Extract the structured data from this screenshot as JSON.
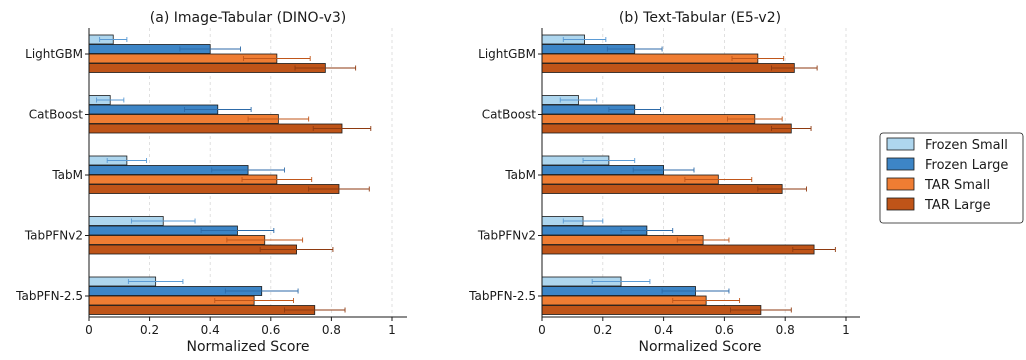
{
  "chart_data": [
    {
      "type": "bar",
      "orientation": "horizontal",
      "title": "(a) Image-Tabular (DINO-v3)",
      "xlabel": "Normalized Score",
      "xlim": [
        0,
        1.05
      ],
      "xticks": [
        "0",
        "0.2",
        "0.4",
        "0.6",
        "0.8",
        "1"
      ],
      "grid": "vertical dashed",
      "categories": [
        "LightGBM",
        "CatBoost",
        "TabM",
        "TabPFNv2",
        "TabPFN-2.5"
      ],
      "series": [
        {
          "name": "Frozen Small",
          "values": [
            0.08,
            0.07,
            0.125,
            0.245,
            0.22
          ],
          "errors": [
            0.045,
            0.045,
            0.065,
            0.105,
            0.09
          ]
        },
        {
          "name": "Frozen Large",
          "values": [
            0.4,
            0.425,
            0.525,
            0.49,
            0.57
          ],
          "errors": [
            0.1,
            0.11,
            0.12,
            0.12,
            0.12
          ]
        },
        {
          "name": "TAR Small",
          "values": [
            0.62,
            0.625,
            0.62,
            0.58,
            0.545
          ],
          "errors": [
            0.11,
            0.1,
            0.115,
            0.125,
            0.13
          ]
        },
        {
          "name": "TAR Large",
          "values": [
            0.78,
            0.835,
            0.825,
            0.685,
            0.745
          ],
          "errors": [
            0.1,
            0.095,
            0.1,
            0.12,
            0.1
          ]
        }
      ]
    },
    {
      "type": "bar",
      "orientation": "horizontal",
      "title": "(b) Text-Tabular (E5-v2)",
      "xlabel": "Normalized Score",
      "xlim": [
        0,
        1.05
      ],
      "xticks": [
        "0",
        "0.2",
        "0.4",
        "0.6",
        "0.8",
        "1"
      ],
      "grid": "vertical dashed",
      "categories": [
        "LightGBM",
        "CatBoost",
        "TabM",
        "TabPFNv2",
        "TabPFN-2.5"
      ],
      "series": [
        {
          "name": "Frozen Small",
          "values": [
            0.14,
            0.12,
            0.22,
            0.135,
            0.26
          ],
          "errors": [
            0.07,
            0.06,
            0.085,
            0.065,
            0.095
          ]
        },
        {
          "name": "Frozen Large",
          "values": [
            0.305,
            0.305,
            0.4,
            0.345,
            0.505
          ],
          "errors": [
            0.09,
            0.085,
            0.1,
            0.085,
            0.11
          ]
        },
        {
          "name": "TAR Small",
          "values": [
            0.71,
            0.7,
            0.58,
            0.53,
            0.54
          ],
          "errors": [
            0.085,
            0.09,
            0.11,
            0.085,
            0.11
          ]
        },
        {
          "name": "TAR Large",
          "values": [
            0.83,
            0.82,
            0.79,
            0.895,
            0.72
          ],
          "errors": [
            0.075,
            0.065,
            0.08,
            0.07,
            0.1
          ]
        }
      ]
    }
  ],
  "legend": {
    "placement": "right",
    "items": [
      {
        "label": "Frozen Small",
        "color": "#aed6ee"
      },
      {
        "label": "Frozen Large",
        "color": "#3d85c6"
      },
      {
        "label": "TAR Small",
        "color": "#ef7d33"
      },
      {
        "label": "TAR Large",
        "color": "#bf5418"
      }
    ]
  },
  "colors": {
    "frozen_small_error": "#5b9bd5",
    "frozen_large_error": "#2d6aa8",
    "tar_small_error": "#c0561a",
    "tar_large_error": "#8e3a10"
  }
}
